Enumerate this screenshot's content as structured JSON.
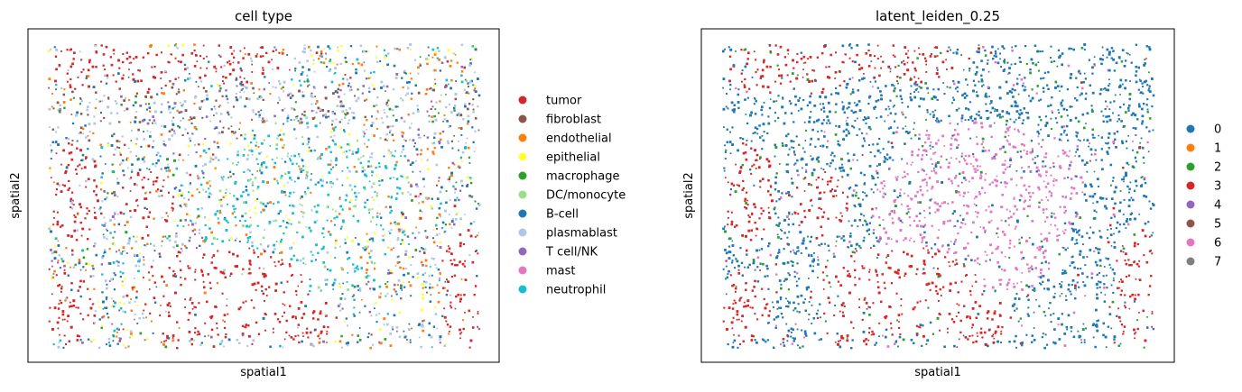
{
  "chart_data": [
    {
      "type": "scatter",
      "title": "cell type",
      "xlabel": "spatial1",
      "ylabel": "spatial2",
      "legend_placement": "right-outside",
      "grid": false,
      "legend": [
        {
          "label": "tumor",
          "color": "#d62728"
        },
        {
          "label": "fibroblast",
          "color": "#8c564b"
        },
        {
          "label": "endothelial",
          "color": "#ff7f0e"
        },
        {
          "label": "epithelial",
          "color": "#ffff33"
        },
        {
          "label": "macrophage",
          "color": "#2ca02c"
        },
        {
          "label": "DC/monocyte",
          "color": "#98df8a"
        },
        {
          "label": "B-cell",
          "color": "#1f77b4"
        },
        {
          "label": "plasmablast",
          "color": "#aec7e8"
        },
        {
          "label": "T cell/NK",
          "color": "#9467bd"
        },
        {
          "label": "mast",
          "color": "#e377c2"
        },
        {
          "label": "neutrophil",
          "color": "#17becf"
        }
      ]
    },
    {
      "type": "scatter",
      "title": "latent_leiden_0.25",
      "xlabel": "spatial1",
      "ylabel": "spatial2",
      "legend_placement": "right-outside",
      "grid": false,
      "legend": [
        {
          "label": "0",
          "color": "#1f77b4"
        },
        {
          "label": "1",
          "color": "#ff7f0e"
        },
        {
          "label": "2",
          "color": "#2ca02c"
        },
        {
          "label": "3",
          "color": "#d62728"
        },
        {
          "label": "4",
          "color": "#9467bd"
        },
        {
          "label": "5",
          "color": "#8c564b"
        },
        {
          "label": "6",
          "color": "#e377c2"
        },
        {
          "label": "7",
          "color": "#7f7f7f"
        }
      ]
    }
  ]
}
